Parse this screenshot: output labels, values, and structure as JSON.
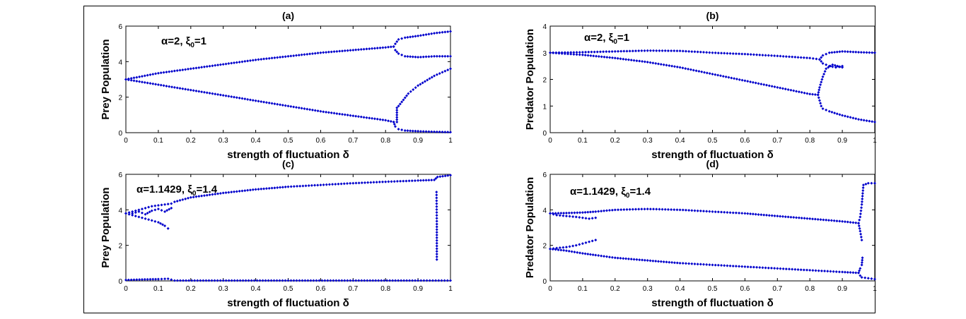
{
  "chart_data": [
    {
      "type": "scatter",
      "panel_label": "(a)",
      "annotation": {
        "alpha": "α=2",
        "xi": "ξ",
        "xi_sub": "0",
        "xi_val": "=1"
      },
      "xlabel": "strength of fluctuation δ",
      "ylabel": "Prey Population",
      "xlim": [
        0,
        1
      ],
      "ylim": [
        0,
        6
      ],
      "xticks": [
        0,
        0.1,
        0.2,
        0.3,
        0.4,
        0.5,
        0.6,
        0.7,
        0.8,
        0.9,
        1
      ],
      "xtick_labels": [
        "0",
        "0.1",
        "0.2",
        "0.3",
        "0.4",
        "0.5",
        "0.6",
        "0.7",
        "0.8",
        "0.9",
        "1"
      ],
      "yticks": [
        0,
        2,
        4,
        6
      ],
      "ytick_labels": [
        "0",
        "2",
        "4",
        "6"
      ],
      "marker_color": "#0000cc",
      "series": [
        {
          "points": [
            [
              0,
              3.0
            ],
            [
              0.1,
              3.35
            ],
            [
              0.2,
              3.6
            ],
            [
              0.3,
              3.85
            ],
            [
              0.4,
              4.1
            ],
            [
              0.5,
              4.3
            ],
            [
              0.6,
              4.5
            ],
            [
              0.7,
              4.65
            ],
            [
              0.8,
              4.8
            ],
            [
              0.825,
              4.85
            ]
          ]
        },
        {
          "points": [
            [
              0,
              3.0
            ],
            [
              0.1,
              2.7
            ],
            [
              0.2,
              2.4
            ],
            [
              0.3,
              2.1
            ],
            [
              0.4,
              1.8
            ],
            [
              0.5,
              1.5
            ],
            [
              0.6,
              1.2
            ],
            [
              0.7,
              0.95
            ],
            [
              0.8,
              0.7
            ],
            [
              0.825,
              0.6
            ]
          ]
        },
        {
          "points": [
            [
              0.825,
              4.85
            ],
            [
              0.83,
              5.0
            ],
            [
              0.84,
              5.25
            ],
            [
              0.86,
              5.35
            ],
            [
              0.9,
              5.45
            ],
            [
              0.95,
              5.6
            ],
            [
              1.0,
              5.7
            ]
          ]
        },
        {
          "points": [
            [
              0.825,
              4.85
            ],
            [
              0.83,
              4.65
            ],
            [
              0.84,
              4.45
            ],
            [
              0.86,
              4.3
            ],
            [
              0.9,
              4.25
            ],
            [
              0.95,
              4.3
            ],
            [
              1.0,
              4.3
            ]
          ]
        },
        {
          "points": [
            [
              0.835,
              0.6
            ],
            [
              0.835,
              1.0
            ],
            [
              0.835,
              1.4
            ],
            [
              0.84,
              1.5
            ],
            [
              0.87,
              2.2
            ],
            [
              0.9,
              2.65
            ],
            [
              0.95,
              3.2
            ],
            [
              1.0,
              3.6
            ]
          ]
        },
        {
          "points": [
            [
              0.825,
              0.6
            ],
            [
              0.83,
              0.35
            ],
            [
              0.84,
              0.2
            ],
            [
              0.86,
              0.12
            ],
            [
              0.9,
              0.08
            ],
            [
              0.95,
              0.05
            ],
            [
              1.0,
              0.03
            ]
          ]
        }
      ]
    },
    {
      "type": "scatter",
      "panel_label": "(b)",
      "annotation": {
        "alpha": "α=2",
        "xi": "ξ",
        "xi_sub": "0",
        "xi_val": "=1"
      },
      "xlabel": "strength of fluctuation δ",
      "ylabel": "Predator Population",
      "xlim": [
        0,
        1
      ],
      "ylim": [
        0,
        4
      ],
      "xticks": [
        0,
        0.1,
        0.2,
        0.3,
        0.4,
        0.5,
        0.6,
        0.7,
        0.8,
        0.9,
        1
      ],
      "xtick_labels": [
        "0",
        "0.1",
        "0.2",
        "0.3",
        "0.4",
        "0.5",
        "0.6",
        "0.7",
        "0.8",
        "0.9",
        "1"
      ],
      "yticks": [
        0,
        1,
        2,
        3,
        4
      ],
      "ytick_labels": [
        "0",
        "1",
        "2",
        "3",
        "4"
      ],
      "marker_color": "#0000cc",
      "series": [
        {
          "points": [
            [
              0,
              3.0
            ],
            [
              0.1,
              3.02
            ],
            [
              0.2,
              3.05
            ],
            [
              0.3,
              3.08
            ],
            [
              0.4,
              3.07
            ],
            [
              0.5,
              3.0
            ],
            [
              0.6,
              2.95
            ],
            [
              0.7,
              2.88
            ],
            [
              0.8,
              2.8
            ],
            [
              0.83,
              2.75
            ]
          ]
        },
        {
          "points": [
            [
              0,
              3.0
            ],
            [
              0.1,
              2.92
            ],
            [
              0.2,
              2.8
            ],
            [
              0.3,
              2.65
            ],
            [
              0.4,
              2.45
            ],
            [
              0.5,
              2.2
            ],
            [
              0.6,
              1.95
            ],
            [
              0.7,
              1.7
            ],
            [
              0.8,
              1.45
            ],
            [
              0.825,
              1.42
            ]
          ]
        },
        {
          "points": [
            [
              0.83,
              2.75
            ],
            [
              0.84,
              2.9
            ],
            [
              0.86,
              3.0
            ],
            [
              0.9,
              3.05
            ],
            [
              0.95,
              3.02
            ],
            [
              1.0,
              3.0
            ]
          ]
        },
        {
          "points": [
            [
              0.83,
              2.75
            ],
            [
              0.84,
              2.6
            ],
            [
              0.86,
              2.5
            ],
            [
              0.88,
              2.45
            ],
            [
              0.9,
              2.5
            ]
          ]
        },
        {
          "points": [
            [
              0.825,
              1.42
            ],
            [
              0.83,
              1.7
            ],
            [
              0.84,
              2.1
            ],
            [
              0.85,
              2.4
            ],
            [
              0.87,
              2.55
            ],
            [
              0.9,
              2.45
            ]
          ]
        },
        {
          "points": [
            [
              0.825,
              1.42
            ],
            [
              0.835,
              1.0
            ],
            [
              0.84,
              0.9
            ],
            [
              0.86,
              0.8
            ],
            [
              0.9,
              0.65
            ],
            [
              0.95,
              0.5
            ],
            [
              1.0,
              0.4
            ]
          ]
        }
      ]
    },
    {
      "type": "scatter",
      "panel_label": "(c)",
      "annotation": {
        "alpha": "α=1.1429",
        "xi": "ξ",
        "xi_sub": "0",
        "xi_val": "=1.4"
      },
      "xlabel": "strength of fluctuation δ",
      "ylabel": "Prey Population",
      "xlim": [
        0,
        1
      ],
      "ylim": [
        0,
        6
      ],
      "xticks": [
        0,
        0.1,
        0.2,
        0.3,
        0.4,
        0.5,
        0.6,
        0.7,
        0.8,
        0.9,
        1
      ],
      "xtick_labels": [
        "0",
        "0.1",
        "0.2",
        "0.3",
        "0.4",
        "0.5",
        "0.6",
        "0.7",
        "0.8",
        "0.9",
        "1"
      ],
      "yticks": [
        0,
        2,
        4,
        6
      ],
      "ytick_labels": [
        "0",
        "2",
        "4",
        "6"
      ],
      "marker_color": "#0000cc",
      "series": [
        {
          "points": [
            [
              0,
              3.8
            ],
            [
              0.02,
              3.9
            ],
            [
              0.04,
              4.0
            ],
            [
              0.06,
              4.1
            ],
            [
              0.08,
              4.2
            ],
            [
              0.1,
              4.25
            ],
            [
              0.12,
              4.3
            ],
            [
              0.14,
              4.35
            ],
            [
              0.15,
              4.45
            ],
            [
              0.2,
              4.7
            ],
            [
              0.3,
              4.95
            ],
            [
              0.4,
              5.15
            ],
            [
              0.5,
              5.3
            ],
            [
              0.6,
              5.4
            ],
            [
              0.7,
              5.5
            ],
            [
              0.8,
              5.58
            ],
            [
              0.9,
              5.65
            ],
            [
              0.95,
              5.68
            ],
            [
              0.96,
              5.85
            ],
            [
              1.0,
              5.95
            ]
          ]
        },
        {
          "points": [
            [
              0,
              3.8
            ],
            [
              0.02,
              3.7
            ],
            [
              0.04,
              3.6
            ],
            [
              0.06,
              3.5
            ],
            [
              0.08,
              3.4
            ],
            [
              0.1,
              3.3
            ],
            [
              0.12,
              3.1
            ],
            [
              0.13,
              2.95
            ]
          ]
        },
        {
          "points": [
            [
              0.02,
              3.8
            ],
            [
              0.04,
              3.9
            ],
            [
              0.06,
              3.75
            ],
            [
              0.08,
              3.95
            ],
            [
              0.1,
              4.05
            ],
            [
              0.12,
              3.9
            ],
            [
              0.14,
              4.1
            ]
          ]
        },
        {
          "points": [
            [
              0,
              0.05
            ],
            [
              0.05,
              0.08
            ],
            [
              0.1,
              0.1
            ],
            [
              0.13,
              0.12
            ],
            [
              0.15,
              0.02
            ],
            [
              0.3,
              0.02
            ],
            [
              0.5,
              0.02
            ],
            [
              0.7,
              0.02
            ],
            [
              0.9,
              0.02
            ],
            [
              1.0,
              0.02
            ]
          ]
        },
        {
          "points": [
            [
              0.957,
              5.0
            ],
            [
              0.958,
              3.2
            ],
            [
              0.958,
              1.2
            ]
          ]
        }
      ]
    },
    {
      "type": "scatter",
      "panel_label": "(d)",
      "annotation": {
        "alpha": "α=1.1429",
        "xi": "ξ",
        "xi_sub": "0",
        "xi_val": "=1.4"
      },
      "xlabel": "strength of fluctuation δ",
      "ylabel": "Predator Population",
      "xlim": [
        0,
        1
      ],
      "ylim": [
        0,
        6
      ],
      "xticks": [
        0,
        0.1,
        0.2,
        0.3,
        0.4,
        0.5,
        0.6,
        0.7,
        0.8,
        0.9,
        1
      ],
      "xtick_labels": [
        "0",
        "0.1",
        "0.2",
        "0.3",
        "0.4",
        "0.5",
        "0.6",
        "0.7",
        "0.8",
        "0.9",
        "1"
      ],
      "yticks": [
        0,
        2,
        4,
        6
      ],
      "ytick_labels": [
        "0",
        "2",
        "4",
        "6"
      ],
      "marker_color": "#0000cc",
      "series": [
        {
          "points": [
            [
              0,
              3.8
            ],
            [
              0.05,
              3.82
            ],
            [
              0.1,
              3.85
            ],
            [
              0.14,
              3.9
            ],
            [
              0.2,
              4.0
            ],
            [
              0.3,
              4.05
            ],
            [
              0.4,
              4.0
            ],
            [
              0.5,
              3.9
            ],
            [
              0.6,
              3.8
            ],
            [
              0.7,
              3.65
            ],
            [
              0.8,
              3.5
            ],
            [
              0.9,
              3.35
            ],
            [
              0.95,
              3.25
            ]
          ]
        },
        {
          "points": [
            [
              0,
              3.8
            ],
            [
              0.02,
              3.7
            ],
            [
              0.05,
              3.65
            ],
            [
              0.08,
              3.6
            ],
            [
              0.1,
              3.55
            ],
            [
              0.12,
              3.5
            ],
            [
              0.14,
              3.55
            ]
          ]
        },
        {
          "points": [
            [
              0,
              1.8
            ],
            [
              0.02,
              1.85
            ],
            [
              0.05,
              1.9
            ],
            [
              0.08,
              2.0
            ],
            [
              0.1,
              2.1
            ],
            [
              0.12,
              2.2
            ],
            [
              0.14,
              2.3
            ]
          ]
        },
        {
          "points": [
            [
              0,
              1.8
            ],
            [
              0.05,
              1.7
            ],
            [
              0.1,
              1.55
            ],
            [
              0.14,
              1.45
            ],
            [
              0.2,
              1.3
            ],
            [
              0.3,
              1.15
            ],
            [
              0.4,
              1.0
            ],
            [
              0.5,
              0.9
            ],
            [
              0.6,
              0.8
            ],
            [
              0.7,
              0.7
            ],
            [
              0.8,
              0.6
            ],
            [
              0.9,
              0.5
            ],
            [
              0.95,
              0.45
            ]
          ]
        },
        {
          "points": [
            [
              0.95,
              3.25
            ],
            [
              0.955,
              3.6
            ],
            [
              0.96,
              4.3
            ],
            [
              0.965,
              5.4
            ],
            [
              0.98,
              5.5
            ],
            [
              1.0,
              5.5
            ]
          ]
        },
        {
          "points": [
            [
              0.95,
              3.25
            ],
            [
              0.955,
              2.8
            ],
            [
              0.96,
              2.3
            ]
          ]
        },
        {
          "points": [
            [
              0.95,
              0.45
            ],
            [
              0.955,
              0.7
            ],
            [
              0.96,
              0.9
            ],
            [
              0.962,
              1.3
            ]
          ]
        },
        {
          "points": [
            [
              0.955,
              0.3
            ],
            [
              0.96,
              0.2
            ],
            [
              0.98,
              0.15
            ],
            [
              1.0,
              0.1
            ]
          ]
        }
      ]
    }
  ]
}
